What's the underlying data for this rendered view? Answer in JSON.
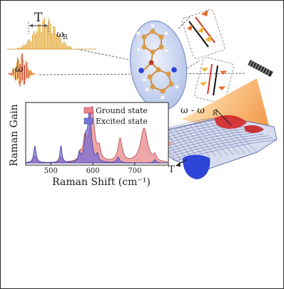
{
  "labels": {
    "pulse_delay": "T",
    "raman_freq": "ω",
    "raman_freq_sub": "R",
    "pump_freq": "ω",
    "difference_freq": "ω - ω",
    "difference_freq_sub": "R",
    "surface_time_axis": "T"
  },
  "colors": {
    "ground_state": "#e8888b",
    "excited_state": "#6f6ad6",
    "pulse_gold": "#e1a021",
    "pulse_red": "#c8382e",
    "cone_orange": "#f0a055",
    "molecule_bubble": "#c7d3ef"
  },
  "chart_data": {
    "type": "line",
    "xlabel": "Raman Shift (cm⁻¹)",
    "ylabel": "Raman Gain",
    "xlim": [
      440,
      780
    ],
    "x_ticks": [
      500,
      600,
      700
    ],
    "grid": false,
    "legend_position": "top-right",
    "series": [
      {
        "name": "Ground state",
        "color": "#e8888b",
        "peaks": [
          {
            "center": 462,
            "width": 4,
            "height": 0.12
          },
          {
            "center": 524,
            "width": 3,
            "height": 0.1
          },
          {
            "center": 570,
            "width": 3,
            "height": 0.12
          },
          {
            "center": 581,
            "width": 5,
            "height": 0.38
          },
          {
            "center": 598,
            "width": 7,
            "height": 0.98
          },
          {
            "center": 615,
            "width": 4,
            "height": 0.2
          },
          {
            "center": 665,
            "width": 6,
            "height": 0.42
          },
          {
            "center": 722,
            "width": 10,
            "height": 0.62
          },
          {
            "center": 748,
            "width": 4,
            "height": 0.1
          }
        ]
      },
      {
        "name": "Excited state",
        "color": "#6f6ad6",
        "peaks": [
          {
            "center": 462,
            "width": 3.5,
            "height": 0.3
          },
          {
            "center": 524,
            "width": 3,
            "height": 0.3
          },
          {
            "center": 568,
            "width": 3,
            "height": 0.16
          },
          {
            "center": 583,
            "width": 4,
            "height": 0.35
          },
          {
            "center": 592,
            "width": 5,
            "height": 0.9
          },
          {
            "center": 611,
            "width": 3,
            "height": 0.12
          },
          {
            "center": 660,
            "width": 4,
            "height": 0.1
          },
          {
            "center": 748,
            "width": 3,
            "height": 0.06
          }
        ]
      }
    ]
  }
}
